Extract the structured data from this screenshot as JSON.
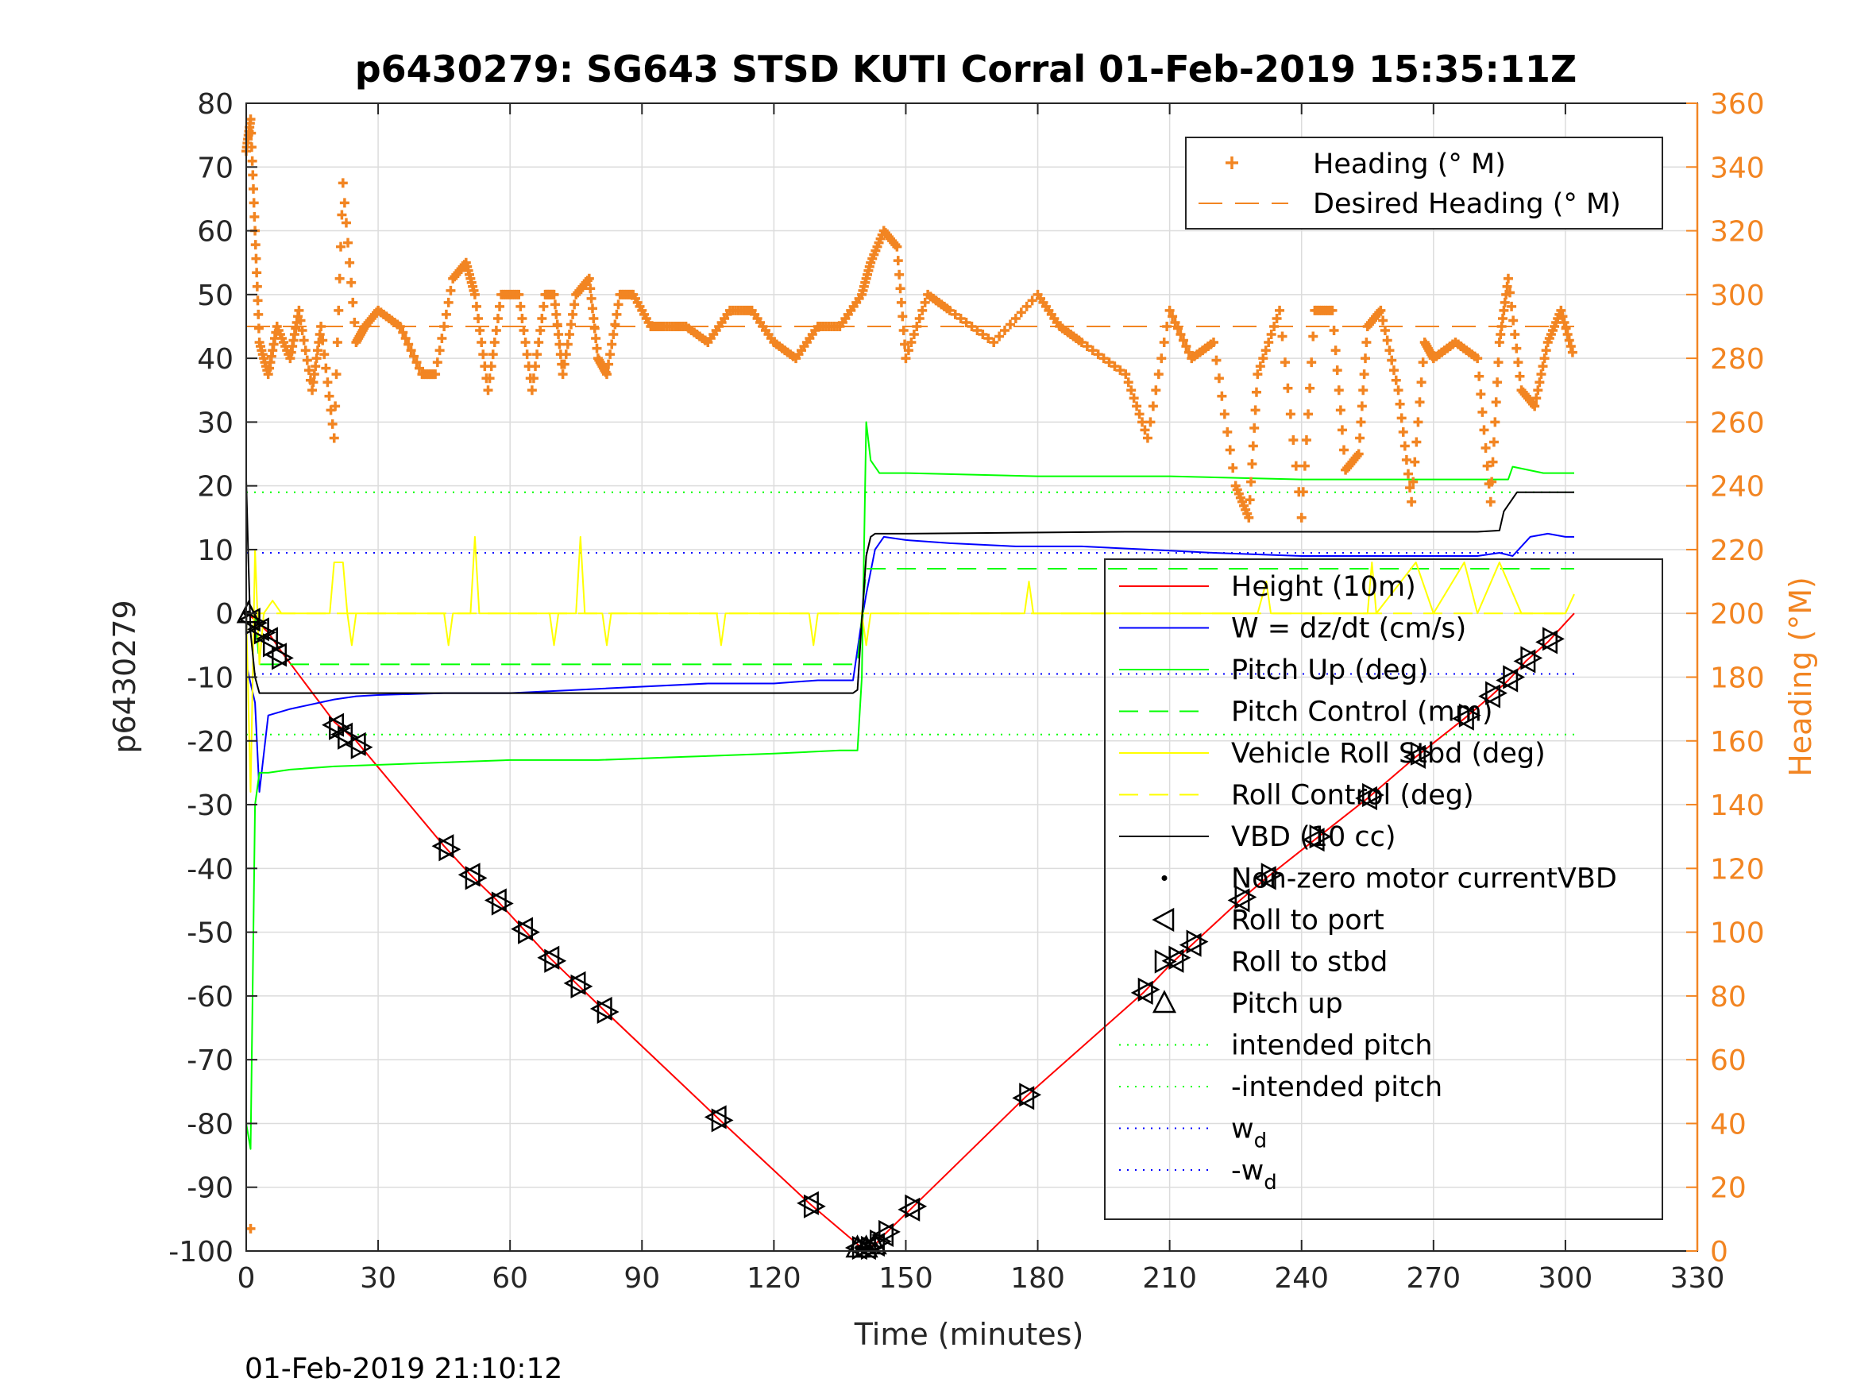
{
  "chart_data": {
    "type": "line",
    "title": "p6430279: SG643 STSD KUTI Corral 01-Feb-2019 15:35:11Z",
    "xlabel": "Time (minutes)",
    "ylabel": "p6430279",
    "ylabel_right": "Heading (°M)",
    "xlim": [
      0,
      330
    ],
    "ylim": [
      -100,
      80
    ],
    "ylim_right": [
      0,
      360
    ],
    "x_ticks": [
      0,
      30,
      60,
      90,
      120,
      150,
      180,
      210,
      240,
      270,
      300,
      330
    ],
    "y_ticks": [
      80,
      70,
      60,
      50,
      40,
      30,
      20,
      10,
      0,
      -10,
      -20,
      -30,
      -40,
      -50,
      -60,
      -70,
      -80,
      -90,
      -100
    ],
    "y_ticks_right": [
      360,
      340,
      320,
      300,
      280,
      260,
      240,
      220,
      200,
      180,
      160,
      140,
      120,
      100,
      80,
      60,
      40,
      20,
      0
    ],
    "grid": true,
    "timestamp": "01-Feb-2019 21:10:12",
    "legend_top": {
      "placement": "top-right",
      "entries": [
        "Heading (° M)",
        "Desired Heading (° M)"
      ]
    },
    "legend_main": {
      "placement": "center-right",
      "entries": [
        {
          "label": "Height (10m)"
        },
        {
          "label": "W = dz/dt (cm/s)"
        },
        {
          "label": "Pitch Up (deg)"
        },
        {
          "label": "Pitch Control (mm)"
        },
        {
          "label": "Vehicle Roll Stbd (deg)"
        },
        {
          "label": "Roll Control (deg)"
        },
        {
          "label": "VBD (10 cc)"
        },
        {
          "label": "Non-zero motor currentVBD"
        },
        {
          "label": "Roll to port"
        },
        {
          "label": "Roll to stbd"
        },
        {
          "label": "Pitch up"
        },
        {
          "label": "intended pitch"
        },
        {
          "label": "-intended pitch"
        },
        {
          "label": "w",
          "sub": "d"
        },
        {
          "label": "-w",
          "sub": "d"
        }
      ]
    },
    "colors": {
      "height": "#ff0000",
      "w": "#0000ff",
      "pitch": "#00ff00",
      "roll": "#ffff00",
      "vbd": "#000000",
      "heading": "#f28522"
    },
    "series": [
      {
        "name": "Height (10m)",
        "axis": "left",
        "x": [
          0,
          2,
          5,
          8,
          20,
          25,
          45,
          51,
          57,
          63,
          69,
          75,
          81,
          107,
          128,
          140,
          141,
          143,
          145,
          151,
          177,
          204,
          211,
          215,
          226,
          232,
          243,
          255,
          266,
          277,
          283,
          287,
          291,
          296,
          302
        ],
        "values": [
          0,
          -1,
          -3,
          -6,
          -17,
          -20,
          -36.5,
          -41,
          -45,
          -49.5,
          -54,
          -58,
          -62,
          -79,
          -92.5,
          -99.5,
          -99.5,
          -99,
          -97.5,
          -93.5,
          -76,
          -59.5,
          -54.5,
          -52,
          -45,
          -41.5,
          -35.5,
          -29,
          -22.5,
          -16.5,
          -13,
          -10.5,
          -7.5,
          -4.5,
          0
        ]
      },
      {
        "name": "W = dz/dt (cm/s)",
        "axis": "left",
        "x": [
          0,
          2,
          3,
          5,
          10,
          20,
          25,
          30,
          45,
          60,
          75,
          90,
          105,
          120,
          130,
          138,
          140,
          141,
          143,
          145,
          150,
          160,
          175,
          190,
          205,
          220,
          240,
          260,
          280,
          285,
          288,
          292,
          296,
          300,
          302
        ],
        "values": [
          -8,
          -14,
          -28,
          -16,
          -15,
          -13.5,
          -13,
          -12.8,
          -12.5,
          -12.5,
          -12,
          -11.5,
          -11,
          -11,
          -10.5,
          -10.5,
          -1,
          3,
          10,
          12,
          11.5,
          11,
          10.5,
          10.5,
          10,
          9.5,
          9,
          9,
          9,
          9.5,
          9,
          12,
          12.5,
          12,
          12
        ]
      },
      {
        "name": "Pitch Up (deg)",
        "axis": "left",
        "x": [
          0,
          1,
          2,
          3,
          5,
          10,
          20,
          40,
          60,
          80,
          100,
          120,
          135,
          139,
          140,
          141,
          142,
          144,
          150,
          180,
          210,
          240,
          260,
          280,
          285,
          287,
          288,
          295,
          302
        ],
        "values": [
          -80,
          -84,
          -30,
          -25,
          -25,
          -24.5,
          -24,
          -23.5,
          -23,
          -23,
          -22.5,
          -22,
          -21.5,
          -21.5,
          -10,
          30,
          24,
          22,
          22,
          21.5,
          21.5,
          21,
          21,
          21,
          21,
          21,
          23,
          22,
          22
        ]
      },
      {
        "name": "Pitch Control (mm)",
        "axis": "left",
        "x": [
          0,
          2,
          3,
          138,
          139,
          141,
          142,
          300,
          302
        ],
        "values": [
          0,
          0,
          -8,
          -8,
          -8,
          7,
          7,
          7,
          7
        ]
      },
      {
        "name": "Vehicle Roll Stbd (deg)",
        "axis": "left",
        "x": [
          0,
          1,
          2,
          3,
          4,
          6,
          8,
          10,
          19,
          20,
          22,
          23,
          24,
          25,
          45,
          46,
          47,
          51,
          52,
          53,
          69,
          70,
          71,
          75,
          76,
          77,
          81,
          82,
          83,
          107,
          108,
          109,
          128,
          129,
          130,
          140,
          141,
          142,
          145,
          150,
          177,
          178,
          179,
          205,
          230,
          232,
          233,
          250,
          255,
          256,
          257,
          266,
          270,
          277,
          280,
          285,
          290,
          300,
          302
        ],
        "values": [
          0,
          -28,
          10,
          -8,
          0,
          2,
          0,
          0,
          0,
          8,
          8,
          0,
          -5,
          0,
          0,
          -5,
          0,
          0,
          12,
          0,
          0,
          -5,
          0,
          0,
          12,
          0,
          0,
          -5,
          0,
          0,
          -5,
          0,
          0,
          -5,
          0,
          0,
          -5,
          0,
          0,
          0,
          0,
          5,
          0,
          0,
          0,
          5,
          0,
          0,
          0,
          8,
          0,
          8,
          0,
          8,
          0,
          8,
          0,
          0,
          3
        ]
      },
      {
        "name": "Roll Control (deg)",
        "axis": "left",
        "x": [
          0,
          302
        ],
        "values": [
          0,
          0
        ]
      },
      {
        "name": "VBD (10 cc)",
        "axis": "left",
        "x": [
          0,
          0.5,
          1,
          2,
          3,
          138,
          139,
          140,
          141,
          142,
          143,
          150,
          200,
          280,
          285,
          286,
          287,
          288,
          289,
          302
        ],
        "values": [
          21,
          8,
          -3,
          -10,
          -12.5,
          -12.5,
          -12,
          -1,
          9,
          12,
          12.5,
          12.5,
          12.8,
          12.8,
          13,
          16,
          17,
          18,
          19,
          19
        ]
      },
      {
        "name": "Heading (° M)",
        "axis": "right",
        "x": [
          0,
          1,
          2,
          3,
          5,
          7,
          10,
          12,
          15,
          17,
          20,
          22,
          25,
          27,
          30,
          35,
          40,
          43,
          47,
          50,
          52,
          55,
          58,
          62,
          65,
          68,
          70,
          72,
          75,
          78,
          80,
          82,
          85,
          88,
          92,
          95,
          100,
          105,
          110,
          115,
          120,
          125,
          130,
          135,
          140,
          142,
          145,
          148,
          150,
          155,
          160,
          170,
          180,
          185,
          190,
          200,
          205,
          210,
          215,
          220,
          225,
          228,
          230,
          235,
          240,
          243,
          247,
          250,
          253,
          255,
          258,
          262,
          265,
          268,
          270,
          275,
          280,
          283,
          285,
          287,
          290,
          293,
          296,
          299,
          302
        ],
        "values": [
          345,
          355,
          320,
          285,
          275,
          290,
          280,
          295,
          270,
          290,
          255,
          335,
          285,
          290,
          295,
          290,
          275,
          275,
          305,
          310,
          300,
          270,
          300,
          300,
          270,
          300,
          300,
          275,
          300,
          305,
          280,
          275,
          300,
          300,
          290,
          290,
          290,
          285,
          295,
          295,
          285,
          280,
          290,
          290,
          300,
          310,
          320,
          315,
          280,
          300,
          295,
          285,
          300,
          290,
          285,
          275,
          255,
          295,
          280,
          285,
          240,
          230,
          275,
          295,
          230,
          295,
          295,
          245,
          250,
          290,
          295,
          270,
          235,
          285,
          280,
          285,
          280,
          235,
          285,
          305,
          270,
          265,
          285,
          295,
          280
        ]
      },
      {
        "name": "Desired Heading (° M)",
        "axis": "right",
        "x": [
          0,
          302
        ],
        "values": [
          290,
          290
        ]
      }
    ],
    "reference_lines": [
      {
        "name": "intended pitch",
        "y": 19
      },
      {
        "name": "-intended pitch",
        "y": -19
      },
      {
        "name": "w_d",
        "y": 9.5
      },
      {
        "name": "-w_d",
        "y": -9.5
      }
    ],
    "markers": {
      "roll_to_port": {
        "x": [
          1,
          3,
          5,
          7,
          20,
          22,
          25,
          45,
          51,
          57,
          63,
          69,
          75,
          81,
          107,
          128,
          139,
          141,
          143,
          145,
          151,
          177,
          204,
          211,
          215,
          226,
          232,
          243,
          255,
          266,
          277,
          283,
          287,
          291,
          296
        ],
        "y": [
          -1,
          -2.5,
          -4,
          -6.5,
          -17.5,
          -19,
          -20.5,
          -36.5,
          -41,
          -45,
          -49.5,
          -54,
          -58,
          -62,
          -79,
          -92.5,
          -99.5,
          -99.5,
          -99,
          -97.5,
          -93.5,
          -76,
          -59.5,
          -54.5,
          -52,
          -45,
          -41.5,
          -35.5,
          -29,
          -22.5,
          -16.5,
          -13,
          -10.5,
          -7.5,
          -4.5
        ]
      },
      "roll_to_stbd": {
        "x": [
          2,
          4,
          6,
          8,
          21,
          23,
          26,
          46,
          52,
          58,
          64,
          70,
          76,
          82,
          108,
          129,
          140,
          142,
          144,
          146,
          152,
          178,
          205,
          212,
          216,
          227,
          233,
          244,
          256,
          267,
          278,
          284,
          288,
          292,
          297
        ],
        "y": [
          -1.5,
          -3,
          -5,
          -7,
          -18,
          -19.5,
          -21,
          -37,
          -41.5,
          -45.5,
          -50,
          -54.5,
          -58.5,
          -62.5,
          -79.5,
          -93,
          -99.5,
          -99.5,
          -98.5,
          -97,
          -93,
          -75.5,
          -59,
          -54,
          -51.5,
          -44.5,
          -41,
          -35,
          -28.5,
          -22,
          -16,
          -12.5,
          -10,
          -7,
          -4
        ]
      },
      "pitch_up": {
        "x": [
          0.5,
          139,
          141,
          143
        ],
        "y": [
          0,
          -99.5,
          -99.5,
          -99
        ]
      },
      "motor_vbd": {
        "x": [
          0,
          0.5,
          139,
          140,
          141,
          142,
          143
        ],
        "y": [
          0,
          0,
          -99.5,
          -99.5,
          -99.5,
          -99.5,
          -99
        ]
      }
    },
    "stray_points_right": [
      {
        "x": 1,
        "y": 7
      }
    ]
  }
}
